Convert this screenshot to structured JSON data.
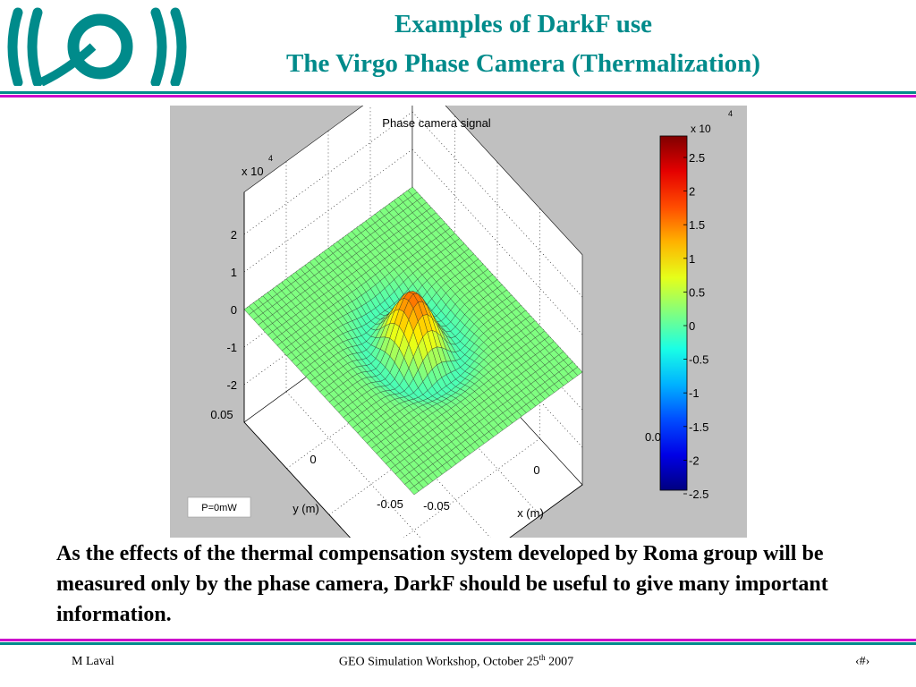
{
  "slide": {
    "title_line1": "Examples of DarkF use",
    "title_line2": "The Virgo Phase Camera (Thermalization)",
    "body": "As the effects of the thermal compensation system developed by Roma group will be measured only by the phase camera, DarkF should be useful to give many important information.",
    "footer_left": "M Laval",
    "footer_center_a": "GEO Simulation Workshop,  October 25",
    "footer_center_sup": "th",
    "footer_center_b": " 2007",
    "footer_right": "‹#›"
  },
  "colors": {
    "title": "#008b8b",
    "rule_teal": "#008b8b",
    "rule_magenta": "#cc00cc",
    "logo": "#008b8b",
    "figure_bg": "#c0c0c0"
  },
  "chart_data": {
    "type": "surface",
    "title": "Phase camera signal",
    "xlabel": "x (m)",
    "ylabel": "y (m)",
    "zlim": [
      -2.5,
      2.5
    ],
    "z_exponent": "x 10",
    "z_exponent_power": "4",
    "z_ticks": [
      "2",
      "1",
      "0",
      "-1",
      "-2"
    ],
    "y_ticks": [
      "0.05",
      "0",
      "-0.05"
    ],
    "x_ticks": [
      "-0.05",
      "0",
      "0.0"
    ],
    "annotation": "P=0mW",
    "colorbar": {
      "exponent": "x 10",
      "exponent_power": "4",
      "ticks": [
        "2.5",
        "2",
        "1.5",
        "1",
        "0.5",
        "0",
        "-0.5",
        "-1",
        "-1.5",
        "-2",
        "-2.5"
      ]
    }
  }
}
